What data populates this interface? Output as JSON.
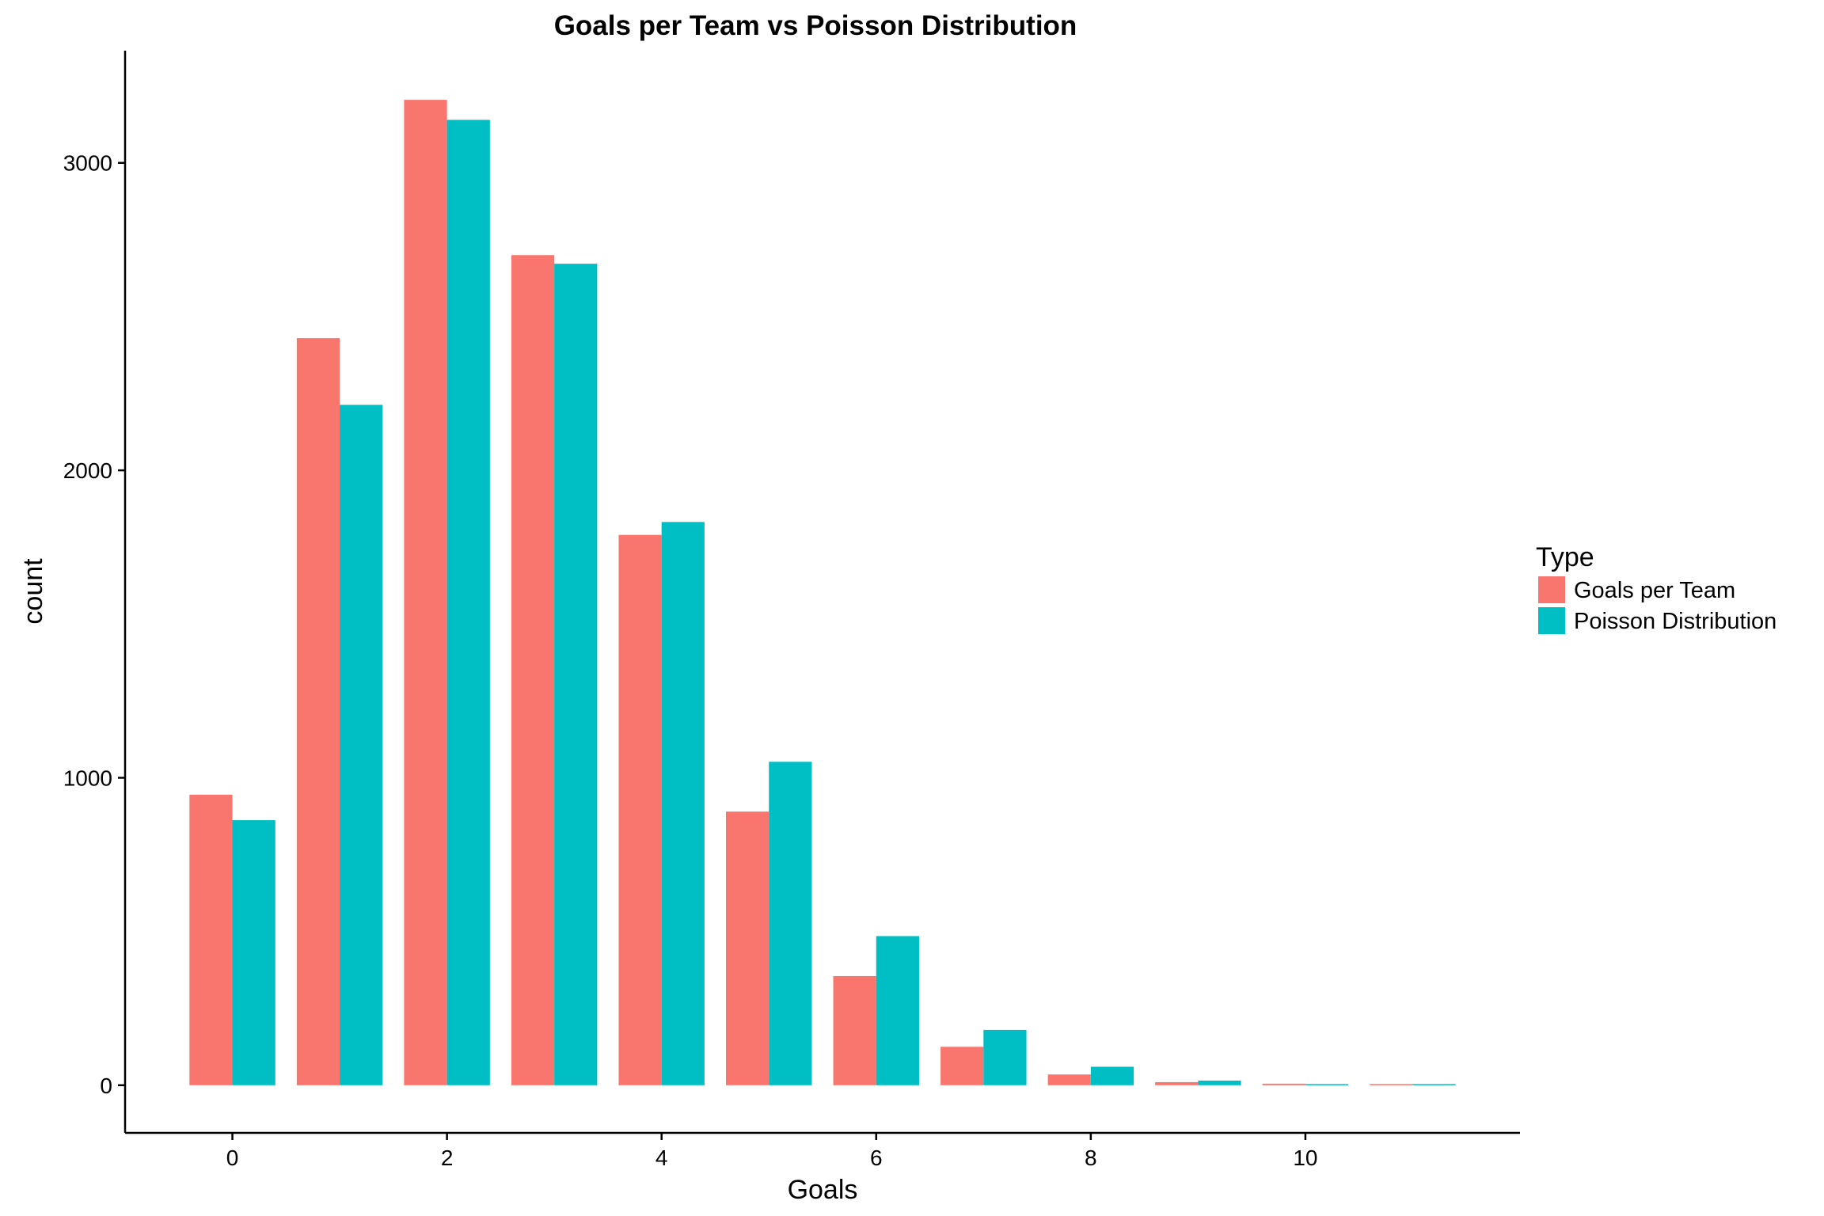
{
  "chart_data": {
    "type": "bar",
    "title": "Goals per Team vs Poisson  Distribution",
    "xlabel": "Goals",
    "ylabel": "count",
    "x": [
      0,
      1,
      2,
      3,
      4,
      5,
      6,
      7,
      8,
      9,
      10,
      11
    ],
    "x_ticks": [
      "0",
      "2",
      "4",
      "6",
      "8",
      "10"
    ],
    "x_tick_values": [
      0,
      2,
      4,
      6,
      8,
      10
    ],
    "y_ticks": [
      "0",
      "1000",
      "2000",
      "3000"
    ],
    "y_tick_values": [
      0,
      1000,
      2000,
      3000
    ],
    "xlim": [
      -1,
      12
    ],
    "ylim": [
      -155,
      3365
    ],
    "grid": false,
    "legend": {
      "title": "Type",
      "placement": "right"
    },
    "series": [
      {
        "name": "Goals per Team",
        "color": "#F8766D",
        "values": [
          945,
          2430,
          3205,
          2700,
          1790,
          890,
          355,
          125,
          35,
          10,
          5,
          0
        ]
      },
      {
        "name": "Poisson Distribution",
        "color": "#00BFC4",
        "values": [
          862,
          2213,
          3140,
          2672,
          1832,
          1052,
          485,
          180,
          60,
          15,
          3,
          1
        ]
      }
    ]
  }
}
